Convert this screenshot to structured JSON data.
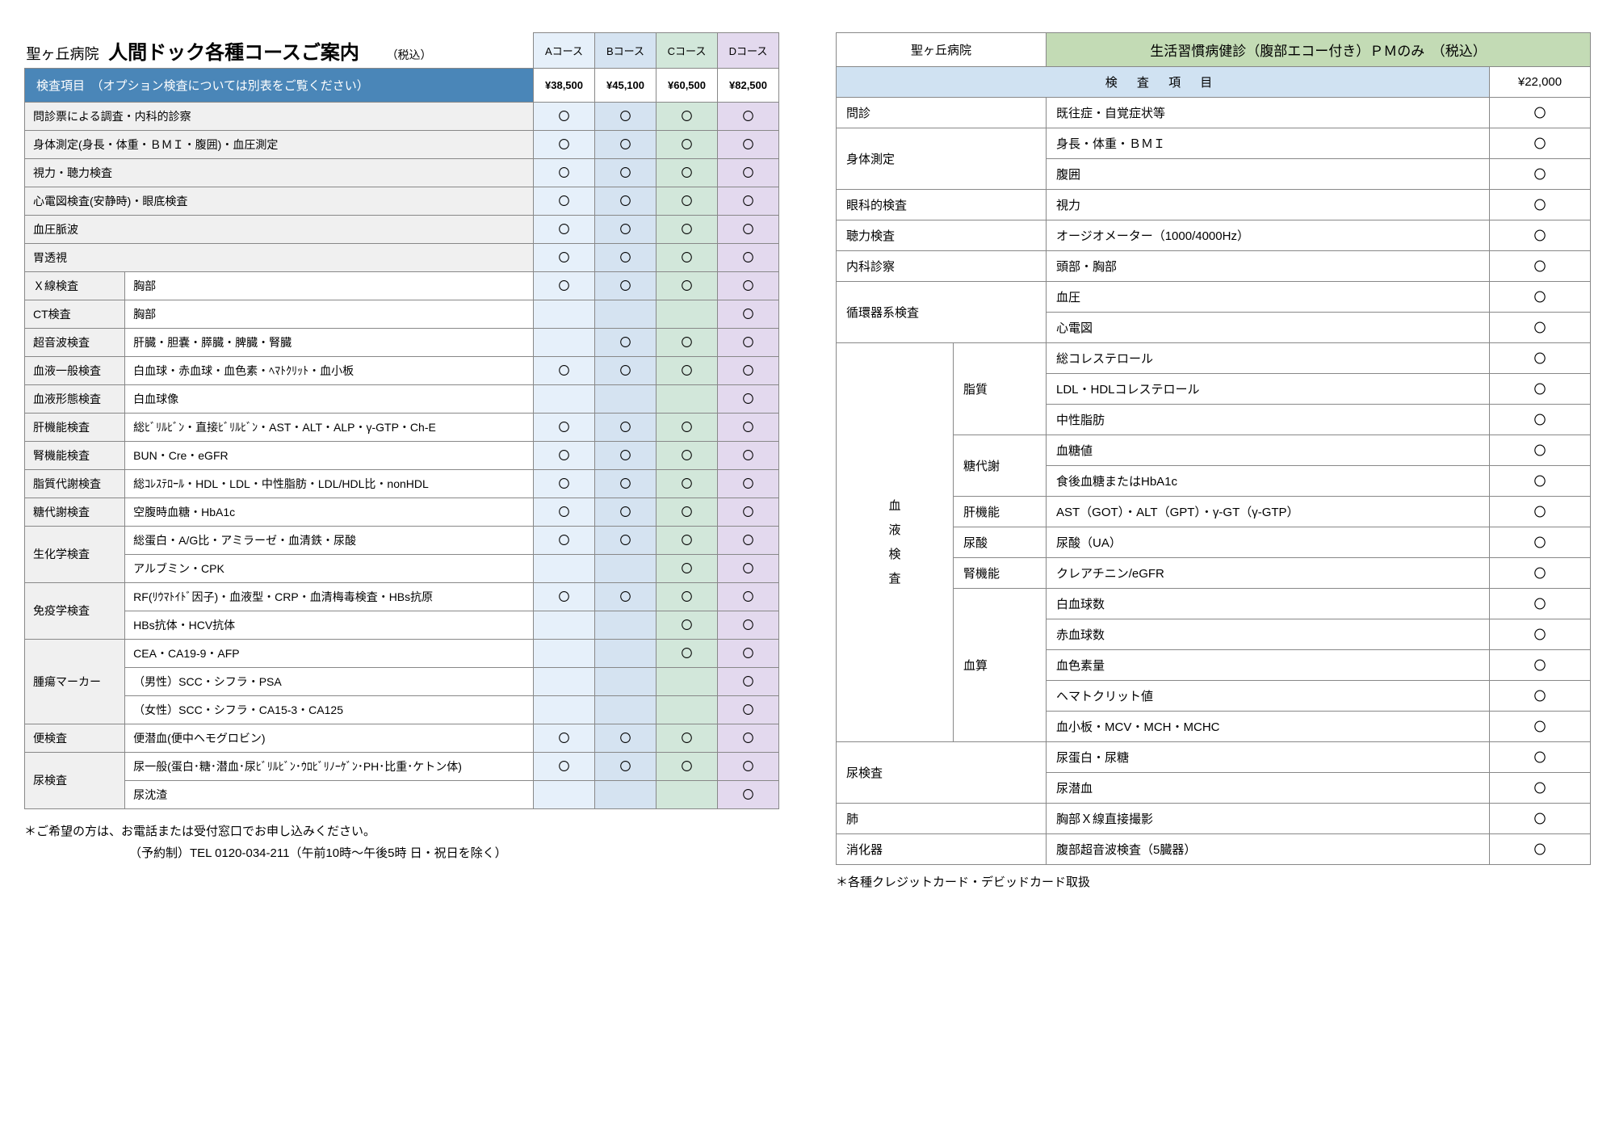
{
  "left": {
    "hospital": "聖ヶ丘病院",
    "title": "人間ドック各種コースご案内",
    "tax": "（税込）",
    "courses": [
      "Aコース",
      "Bコース",
      "Cコース",
      "Dコース"
    ],
    "header_blue": "検査項目　（オプション検査については別表をご覧ください）",
    "prices": [
      "¥38,500",
      "¥45,100",
      "¥60,500",
      "¥82,500"
    ],
    "rows": [
      {
        "cat": "問診票による調査・内科的診察",
        "span": 2,
        "a": "〇",
        "b": "〇",
        "c": "〇",
        "d": "〇"
      },
      {
        "cat": "身体測定(身長・体重・ＢＭＩ・腹囲)・血圧測定",
        "span": 2,
        "a": "〇",
        "b": "〇",
        "c": "〇",
        "d": "〇"
      },
      {
        "cat": "視力・聴力検査",
        "span": 2,
        "a": "〇",
        "b": "〇",
        "c": "〇",
        "d": "〇"
      },
      {
        "cat": "心電図検査(安静時)・眼底検査",
        "span": 2,
        "a": "〇",
        "b": "〇",
        "c": "〇",
        "d": "〇"
      },
      {
        "cat": "血圧脈波",
        "span": 2,
        "a": "〇",
        "b": "〇",
        "c": "〇",
        "d": "〇"
      },
      {
        "cat": "胃透視",
        "span": 2,
        "a": "〇",
        "b": "〇",
        "c": "〇",
        "d": "〇"
      },
      {
        "cat": "Ｘ線検査",
        "detail": "胸部",
        "a": "〇",
        "b": "〇",
        "c": "〇",
        "d": "〇"
      },
      {
        "cat": "CT検査",
        "detail": "胸部",
        "a": "",
        "b": "",
        "c": "",
        "d": "〇"
      },
      {
        "cat": "超音波検査",
        "detail": "肝臓・胆嚢・膵臓・脾臓・腎臓",
        "a": "",
        "b": "〇",
        "c": "〇",
        "d": "〇"
      },
      {
        "cat": "血液一般検査",
        "detail": "白血球・赤血球・血色素・ﾍﾏﾄｸﾘｯﾄ・血小板",
        "a": "〇",
        "b": "〇",
        "c": "〇",
        "d": "〇"
      },
      {
        "cat": "血液形態検査",
        "detail": "白血球像",
        "a": "",
        "b": "",
        "c": "",
        "d": "〇"
      },
      {
        "cat": "肝機能検査",
        "detail": "総ﾋﾞﾘﾙﾋﾞﾝ・直接ﾋﾞﾘﾙﾋﾞﾝ・AST・ALT・ALP・γ-GTP・Ch-E",
        "a": "〇",
        "b": "〇",
        "c": "〇",
        "d": "〇"
      },
      {
        "cat": "腎機能検査",
        "detail": "BUN・Cre・eGFR",
        "a": "〇",
        "b": "〇",
        "c": "〇",
        "d": "〇"
      },
      {
        "cat": "脂質代謝検査",
        "detail": "総ｺﾚｽﾃﾛｰﾙ・HDL・LDL・中性脂肪・LDL/HDL比・nonHDL",
        "a": "〇",
        "b": "〇",
        "c": "〇",
        "d": "〇"
      },
      {
        "cat": "糖代謝検査",
        "detail": "空腹時血糖・HbA1c",
        "a": "〇",
        "b": "〇",
        "c": "〇",
        "d": "〇"
      },
      {
        "cat": "生化学検査",
        "rowspan": 2,
        "detail": "総蛋白・A/G比・アミラーゼ・血清鉄・尿酸",
        "a": "〇",
        "b": "〇",
        "c": "〇",
        "d": "〇"
      },
      {
        "detail": "アルブミン・CPK",
        "a": "",
        "b": "",
        "c": "〇",
        "d": "〇"
      },
      {
        "cat": "免疫学検査",
        "rowspan": 2,
        "detail": "RF(ﾘｳﾏﾄｲﾄﾞ因子)・血液型・CRP・血清梅毒検査・HBs抗原",
        "a": "〇",
        "b": "〇",
        "c": "〇",
        "d": "〇"
      },
      {
        "detail": "HBs抗体・HCV抗体",
        "a": "",
        "b": "",
        "c": "〇",
        "d": "〇"
      },
      {
        "cat": "腫瘍マーカー",
        "rowspan": 3,
        "detail": "CEA・CA19-9・AFP",
        "a": "",
        "b": "",
        "c": "〇",
        "d": "〇"
      },
      {
        "detail": "（男性）SCC・シフラ・PSA",
        "a": "",
        "b": "",
        "c": "",
        "d": "〇"
      },
      {
        "detail": "（女性）SCC・シフラ・CA15-3・CA125",
        "a": "",
        "b": "",
        "c": "",
        "d": "〇"
      },
      {
        "cat": "便検査",
        "detail": "便潜血(便中ヘモグロビン)",
        "a": "〇",
        "b": "〇",
        "c": "〇",
        "d": "〇"
      },
      {
        "cat": "尿検査",
        "rowspan": 2,
        "detail": "尿一般(蛋白･糖･潜血･尿ﾋﾞﾘﾙﾋﾞﾝ･ｳﾛﾋﾞﾘﾉｰｹﾞﾝ･PH･比重･ケトン体)",
        "a": "〇",
        "b": "〇",
        "c": "〇",
        "d": "〇"
      },
      {
        "detail": "尿沈渣",
        "a": "",
        "b": "",
        "c": "",
        "d": "〇"
      }
    ],
    "note1": "＊ご希望の方は、お電話または受付窓口でお申し込みください。",
    "note2": "（予約制）TEL 0120-034-211（午前10時～午後5時 日・祝日を除く）"
  },
  "right": {
    "hospital": "聖ヶ丘病院",
    "title": "生活習慣病健診（腹部エコー付き）ＰＭのみ　（税込）",
    "kensa_hdr": "検 査 項 目",
    "price": "¥22,000",
    "rows": [
      {
        "sec": "問診",
        "secspan": 2,
        "detail": "既往症・自覚症状等"
      },
      {
        "sec": "身体測定",
        "secspan": 2,
        "rowspan": 2,
        "detail": "身長・体重・ＢＭＩ"
      },
      {
        "detail": "腹囲"
      },
      {
        "sec": "眼科的検査",
        "secspan": 2,
        "detail": "視力"
      },
      {
        "sec": "聴力検査",
        "secspan": 2,
        "detail": "オージオメーター（1000/4000Hz）"
      },
      {
        "sec": "内科診察",
        "secspan": 2,
        "detail": "頭部・胸部"
      },
      {
        "sec": "循環器系検査",
        "secspan": 2,
        "rowspan": 2,
        "detail": "血圧"
      },
      {
        "detail": "心電図"
      },
      {
        "sec": "血\n液\n検\n査",
        "vert": true,
        "rowspan": 13,
        "sub": "脂質",
        "subrow": 3,
        "detail": "総コレステロール"
      },
      {
        "detail": "LDL・HDLコレステロール"
      },
      {
        "detail": "中性脂肪"
      },
      {
        "sub": "糖代謝",
        "subrow": 2,
        "detail": "血糖値"
      },
      {
        "detail": "食後血糖またはHbA1c"
      },
      {
        "sub": "肝機能",
        "subrow": 1,
        "detail": "AST（GOT）・ALT（GPT）・γ-GT（γ-GTP）"
      },
      {
        "sub": "尿酸",
        "subrow": 1,
        "detail": "尿酸（UA）"
      },
      {
        "sub": "腎機能",
        "subrow": 1,
        "detail": "クレアチニン/eGFR"
      },
      {
        "sub": "血算",
        "subrow": 5,
        "detail": "白血球数"
      },
      {
        "detail": "赤血球数"
      },
      {
        "detail": "血色素量"
      },
      {
        "detail": "ヘマトクリット値"
      },
      {
        "detail": "血小板・MCV・MCH・MCHC"
      },
      {
        "sec": "尿検査",
        "secspan": 2,
        "rowspan": 2,
        "detail": "尿蛋白・尿糖"
      },
      {
        "detail": "尿潜血"
      },
      {
        "sec": "肺",
        "secspan": 2,
        "detail": "胸部Ｘ線直接撮影"
      },
      {
        "sec": "消化器",
        "secspan": 2,
        "detail": "腹部超音波検査（5臓器）"
      }
    ],
    "mark": "〇",
    "note": "＊各種クレジットカード・デビッドカード取扱"
  },
  "colors": {
    "header_blue": "#4a86b8",
    "col_a": "#e6f0fa",
    "col_b": "#d5e3f1",
    "col_c": "#d2e7da",
    "col_d": "#e3d9ee",
    "right_title_bg": "#c3dbb5",
    "right_kensa_bg": "#d0e2f2",
    "border": "#888888"
  }
}
